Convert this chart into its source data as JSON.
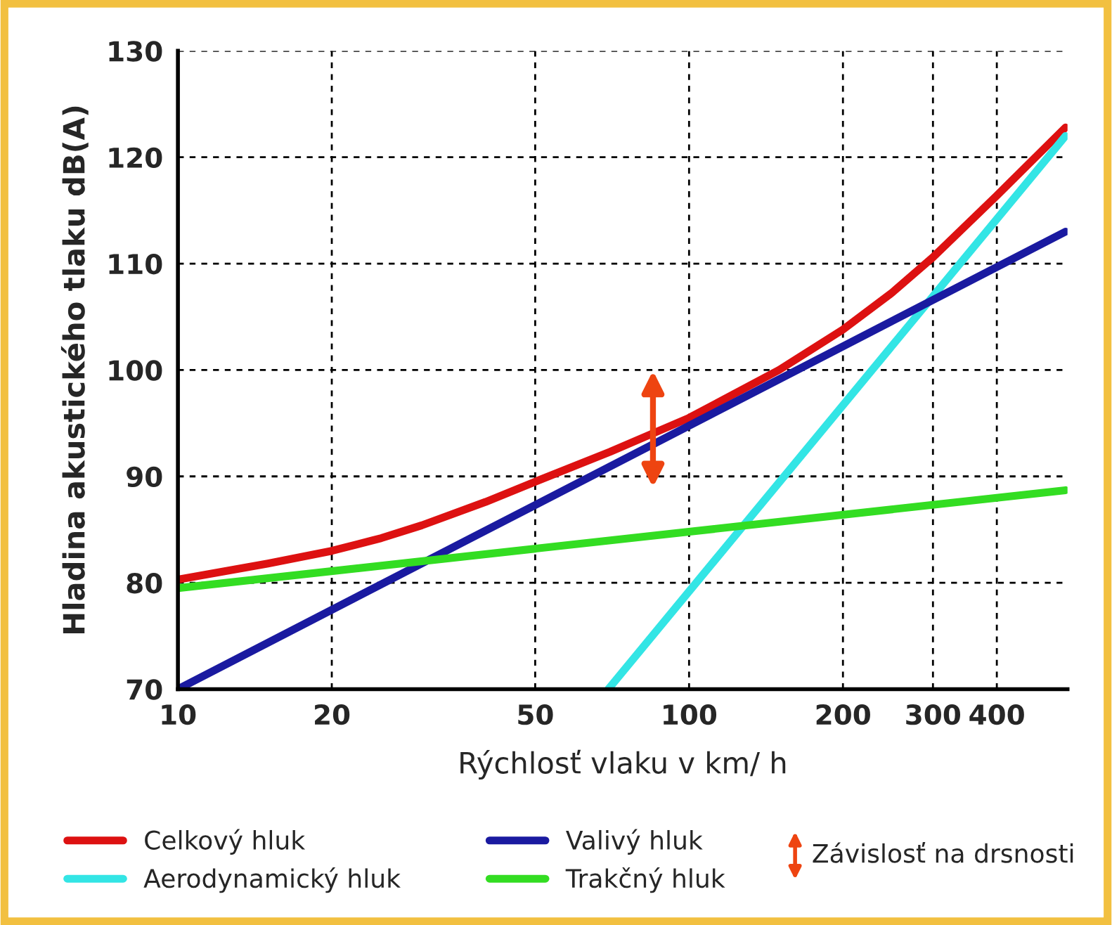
{
  "chart_data": {
    "type": "line",
    "xlabel": "Rýchlosť vlaku v km/ h",
    "ylabel": "Hladina akustického tlaku dB(A)",
    "log": "x",
    "xlim": [
      10,
      550
    ],
    "ylim": [
      70,
      130
    ],
    "xticks": [
      10,
      20,
      50,
      100,
      200,
      300,
      400
    ],
    "yticks": [
      70,
      80,
      90,
      100,
      110,
      120,
      130
    ],
    "grid": true,
    "legend": "bottom",
    "marker": "none",
    "line_style": "solid",
    "series": [
      {
        "name": "Celkový hluk",
        "color": "#dd1111",
        "x": [
          10,
          15,
          20,
          25,
          30,
          40,
          50,
          70,
          100,
          150,
          200,
          250,
          300,
          400,
          545
        ],
        "values": [
          80.3,
          81.8,
          83.0,
          84.2,
          85.4,
          87.6,
          89.5,
          92.3,
          95.5,
          100,
          103.8,
          107.3,
          110.6,
          116.4,
          122.8
        ]
      },
      {
        "name": "Aerodynamický hluk",
        "color": "#33e5e5",
        "x": [
          69.5,
          545
        ],
        "values": [
          70,
          122
        ]
      },
      {
        "name": "Valivý hluk",
        "color": "#1a1aa0",
        "x": [
          10,
          545
        ],
        "values": [
          70,
          113
        ]
      },
      {
        "name": "Trakčný hluk",
        "color": "#33dd22",
        "x": [
          10,
          545
        ],
        "values": [
          79.5,
          88.7
        ]
      }
    ],
    "annotations": [
      "Závislosť na drsnosti"
    ]
  }
}
